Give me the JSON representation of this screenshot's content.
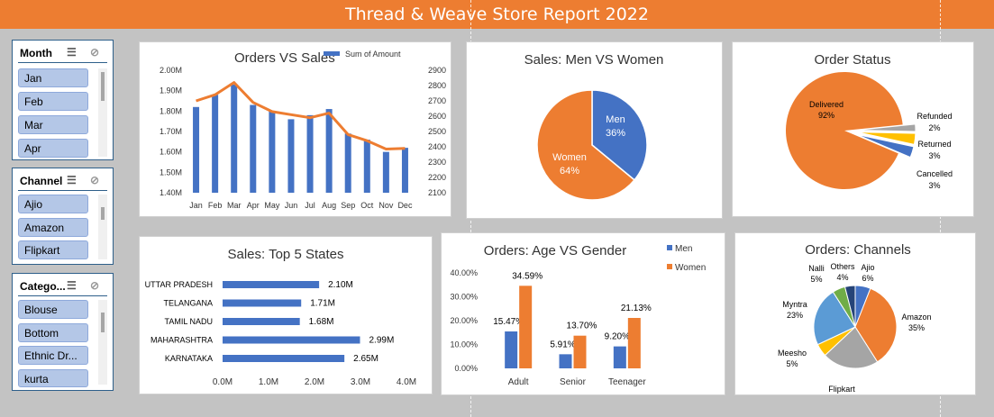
{
  "header": {
    "title": "Thread & Weave Store Report 2022"
  },
  "slicers": [
    {
      "title": "Month",
      "items": [
        "Jan",
        "Feb",
        "Mar",
        "Apr"
      ]
    },
    {
      "title": "Channel",
      "items": [
        "Ajio",
        "Amazon",
        "Flipkart"
      ]
    },
    {
      "title": "Catego...",
      "items": [
        "Blouse",
        "Bottom",
        "Ethnic Dr...",
        "kurta"
      ]
    }
  ],
  "chart_data": [
    {
      "type": "bar",
      "title": "Orders VS Sales",
      "legend": "Sum of Amount",
      "categories": [
        "Jan",
        "Feb",
        "Mar",
        "Apr",
        "May",
        "Jun",
        "Jul",
        "Aug",
        "Sep",
        "Oct",
        "Nov",
        "Dec"
      ],
      "series": [
        {
          "name": "Sum of Amount",
          "values": [
            1.82,
            1.88,
            1.93,
            1.83,
            1.8,
            1.76,
            1.78,
            1.81,
            1.69,
            1.66,
            1.6,
            1.62
          ],
          "color": "#4472c4"
        },
        {
          "values": [
            2700,
            2740,
            2820,
            2690,
            2630,
            2610,
            2590,
            2620,
            2480,
            2440,
            2385,
            2390
          ],
          "color": "#ed7d31"
        }
      ],
      "ylim": [
        1.4,
        2.0
      ],
      "y_ticks": [
        "1.40M",
        "1.50M",
        "1.60M",
        "1.70M",
        "1.80M",
        "1.90M",
        "2.00M"
      ],
      "y2lim": [
        2100,
        2900
      ],
      "y2_ticks": [
        "2100",
        "2200",
        "2300",
        "2400",
        "2500",
        "2600",
        "2700",
        "2800",
        "2900"
      ],
      "legend_position": "top"
    },
    {
      "type": "pie",
      "title": "Sales: Men VS Women",
      "labels": [
        "Men",
        "Women"
      ],
      "values": [
        36,
        64
      ],
      "label_text": [
        "36%",
        "64%"
      ],
      "colors": [
        "#4472c4",
        "#ed7d31"
      ]
    },
    {
      "type": "pie",
      "title": "Order Status",
      "labels": [
        "Delivered",
        "Refunded",
        "Returned",
        "Cancelled"
      ],
      "values": [
        92,
        2,
        3,
        3
      ],
      "label_text": [
        "92%",
        "2%",
        "3%",
        "3%"
      ],
      "colors": [
        "#ed7d31",
        "#a5a5a5",
        "#ffc000",
        "#4472c4"
      ]
    },
    {
      "type": "bar",
      "orientation": "horizontal",
      "title": "Sales: Top 5 States",
      "categories": [
        "UTTAR PRADESH",
        "TELANGANA",
        "TAMIL NADU",
        "MAHARASHTRA",
        "KARNATAKA"
      ],
      "values": [
        2.1,
        1.71,
        1.68,
        2.99,
        2.65
      ],
      "value_labels": [
        "2.10M",
        "1.71M",
        "1.68M",
        "2.99M",
        "2.65M"
      ],
      "xlim": [
        0,
        4.0
      ],
      "x_ticks": [
        "0.0M",
        "1.0M",
        "2.0M",
        "3.0M",
        "4.0M"
      ],
      "color": "#4472c4"
    },
    {
      "type": "bar",
      "title": "Orders: Age VS Gender",
      "categories": [
        "Adult",
        "Senior",
        "Teenager"
      ],
      "series": [
        {
          "name": "Men",
          "values": [
            15.47,
            5.91,
            9.2
          ],
          "labels": [
            "15.47%",
            "5.91%",
            "9.20%"
          ],
          "color": "#4472c4"
        },
        {
          "name": "Women",
          "values": [
            34.59,
            13.7,
            21.13
          ],
          "labels": [
            "34.59%",
            "13.70%",
            "21.13%"
          ],
          "color": "#ed7d31"
        }
      ],
      "ylim": [
        0,
        40
      ],
      "y_ticks": [
        "0.00%",
        "10.00%",
        "20.00%",
        "30.00%",
        "40.00%"
      ],
      "legend_position": "top-right"
    },
    {
      "type": "pie",
      "title": "Orders: Channels",
      "labels": [
        "Ajio",
        "Amazon",
        "Flipkart",
        "Meesho",
        "Myntra",
        "Nalli",
        "Others"
      ],
      "values": [
        6,
        35,
        22,
        5,
        23,
        5,
        4
      ],
      "label_text": [
        "6%",
        "35%",
        "22%",
        "5%",
        "23%",
        "5%",
        "4%"
      ],
      "colors": [
        "#4472c4",
        "#ed7d31",
        "#a5a5a5",
        "#ffc000",
        "#5b9bd5",
        "#70ad47",
        "#264478"
      ]
    }
  ]
}
